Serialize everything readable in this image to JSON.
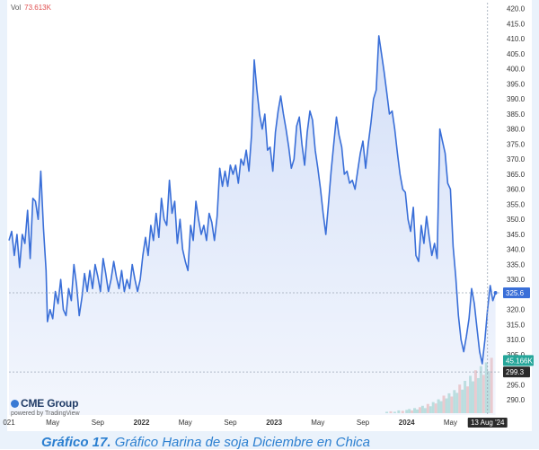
{
  "header": {
    "vol_label": "Vol",
    "vol_value": "73.613K"
  },
  "branding": {
    "logo": "CME Group",
    "powered_by": "powered by TradingView"
  },
  "caption": {
    "prefix": "Gráfico 17.",
    "text": " Gráfico Harina de soja Diciembre en Chica"
  },
  "colors": {
    "line": "#3a6fd8",
    "area": "#cfdcf7",
    "price_badge": "#3a6fd8",
    "vol_badge": "#26a69a",
    "low_badge": "#2b2b2b",
    "vol_up": "#a6d8cf",
    "vol_down": "#f2b8b5"
  },
  "chart_data": {
    "type": "area",
    "ylim": [
      285,
      422
    ],
    "yticks": [
      290,
      295,
      300,
      305,
      310,
      315,
      320,
      325,
      330,
      335,
      340,
      345,
      350,
      355,
      360,
      365,
      370,
      375,
      380,
      385,
      390,
      395,
      400,
      405,
      410,
      415,
      420
    ],
    "xticks": [
      {
        "label": "021",
        "t": 0.0
      },
      {
        "label": "May",
        "t": 0.33
      },
      {
        "label": "Sep",
        "t": 0.67
      },
      {
        "label": "2022",
        "t": 1.0,
        "bold": true
      },
      {
        "label": "May",
        "t": 1.33
      },
      {
        "label": "Sep",
        "t": 1.67
      },
      {
        "label": "2023",
        "t": 2.0,
        "bold": true
      },
      {
        "label": "May",
        "t": 2.33
      },
      {
        "label": "Sep",
        "t": 2.67
      },
      {
        "label": "2024",
        "t": 3.0,
        "bold": true
      },
      {
        "label": "May",
        "t": 3.33
      }
    ],
    "last_price": 325.6,
    "last_price_label": "325.6",
    "low_price_label": "299.3",
    "low_price": 299.3,
    "volume_label": "45.166K",
    "volume_ylim_value": 304,
    "date_marker": "13 Aug '24",
    "date_marker_t": 3.61,
    "price_series": [
      [
        0.0,
        343
      ],
      [
        0.02,
        346
      ],
      [
        0.04,
        338
      ],
      [
        0.06,
        345
      ],
      [
        0.08,
        334
      ],
      [
        0.1,
        345
      ],
      [
        0.12,
        342
      ],
      [
        0.14,
        353
      ],
      [
        0.16,
        337
      ],
      [
        0.18,
        357
      ],
      [
        0.2,
        356
      ],
      [
        0.22,
        350
      ],
      [
        0.24,
        366
      ],
      [
        0.26,
        347
      ],
      [
        0.28,
        333
      ],
      [
        0.29,
        316
      ],
      [
        0.31,
        320
      ],
      [
        0.33,
        317
      ],
      [
        0.35,
        326
      ],
      [
        0.37,
        322
      ],
      [
        0.39,
        330
      ],
      [
        0.41,
        320
      ],
      [
        0.43,
        318
      ],
      [
        0.45,
        327
      ],
      [
        0.47,
        323
      ],
      [
        0.49,
        335
      ],
      [
        0.51,
        328
      ],
      [
        0.53,
        318
      ],
      [
        0.55,
        324
      ],
      [
        0.57,
        332
      ],
      [
        0.59,
        326
      ],
      [
        0.61,
        333
      ],
      [
        0.63,
        327
      ],
      [
        0.65,
        335
      ],
      [
        0.67,
        331
      ],
      [
        0.69,
        326
      ],
      [
        0.71,
        337
      ],
      [
        0.73,
        332
      ],
      [
        0.75,
        326
      ],
      [
        0.77,
        330
      ],
      [
        0.79,
        336
      ],
      [
        0.81,
        331
      ],
      [
        0.83,
        327
      ],
      [
        0.85,
        333
      ],
      [
        0.87,
        326
      ],
      [
        0.89,
        330
      ],
      [
        0.91,
        327
      ],
      [
        0.93,
        335
      ],
      [
        0.95,
        330
      ],
      [
        0.97,
        326
      ],
      [
        0.99,
        330
      ],
      [
        1.01,
        338
      ],
      [
        1.03,
        344
      ],
      [
        1.05,
        338
      ],
      [
        1.07,
        348
      ],
      [
        1.09,
        343
      ],
      [
        1.11,
        352
      ],
      [
        1.13,
        344
      ],
      [
        1.15,
        357
      ],
      [
        1.17,
        350
      ],
      [
        1.19,
        348
      ],
      [
        1.21,
        363
      ],
      [
        1.23,
        352
      ],
      [
        1.25,
        356
      ],
      [
        1.27,
        342
      ],
      [
        1.29,
        350
      ],
      [
        1.31,
        340
      ],
      [
        1.33,
        336
      ],
      [
        1.35,
        333
      ],
      [
        1.37,
        348
      ],
      [
        1.39,
        343
      ],
      [
        1.41,
        356
      ],
      [
        1.43,
        350
      ],
      [
        1.45,
        345
      ],
      [
        1.47,
        348
      ],
      [
        1.49,
        343
      ],
      [
        1.51,
        352
      ],
      [
        1.53,
        349
      ],
      [
        1.55,
        343
      ],
      [
        1.57,
        351
      ],
      [
        1.59,
        367
      ],
      [
        1.61,
        361
      ],
      [
        1.63,
        366
      ],
      [
        1.65,
        361
      ],
      [
        1.67,
        368
      ],
      [
        1.69,
        365
      ],
      [
        1.71,
        368
      ],
      [
        1.73,
        362
      ],
      [
        1.75,
        370
      ],
      [
        1.77,
        368
      ],
      [
        1.79,
        373
      ],
      [
        1.81,
        366
      ],
      [
        1.83,
        378
      ],
      [
        1.85,
        403
      ],
      [
        1.87,
        393
      ],
      [
        1.89,
        385
      ],
      [
        1.91,
        380
      ],
      [
        1.93,
        385
      ],
      [
        1.95,
        373
      ],
      [
        1.97,
        374
      ],
      [
        1.99,
        366
      ],
      [
        2.01,
        379
      ],
      [
        2.03,
        386
      ],
      [
        2.05,
        391
      ],
      [
        2.07,
        385
      ],
      [
        2.09,
        380
      ],
      [
        2.11,
        374
      ],
      [
        2.13,
        367
      ],
      [
        2.15,
        370
      ],
      [
        2.17,
        381
      ],
      [
        2.19,
        384
      ],
      [
        2.21,
        375
      ],
      [
        2.23,
        368
      ],
      [
        2.25,
        379
      ],
      [
        2.27,
        386
      ],
      [
        2.29,
        383
      ],
      [
        2.31,
        373
      ],
      [
        2.33,
        367
      ],
      [
        2.35,
        360
      ],
      [
        2.37,
        352
      ],
      [
        2.39,
        345
      ],
      [
        2.41,
        355
      ],
      [
        2.43,
        366
      ],
      [
        2.45,
        375
      ],
      [
        2.47,
        384
      ],
      [
        2.49,
        378
      ],
      [
        2.51,
        374
      ],
      [
        2.53,
        365
      ],
      [
        2.55,
        366
      ],
      [
        2.57,
        362
      ],
      [
        2.59,
        363
      ],
      [
        2.61,
        360
      ],
      [
        2.63,
        366
      ],
      [
        2.65,
        372
      ],
      [
        2.67,
        376
      ],
      [
        2.69,
        367
      ],
      [
        2.71,
        375
      ],
      [
        2.73,
        382
      ],
      [
        2.75,
        390
      ],
      [
        2.77,
        393
      ],
      [
        2.79,
        411
      ],
      [
        2.81,
        405
      ],
      [
        2.83,
        399
      ],
      [
        2.85,
        392
      ],
      [
        2.87,
        385
      ],
      [
        2.89,
        386
      ],
      [
        2.91,
        380
      ],
      [
        2.93,
        372
      ],
      [
        2.95,
        365
      ],
      [
        2.97,
        360
      ],
      [
        2.99,
        359
      ],
      [
        3.01,
        350
      ],
      [
        3.03,
        346
      ],
      [
        3.05,
        354
      ],
      [
        3.07,
        338
      ],
      [
        3.09,
        336
      ],
      [
        3.11,
        348
      ],
      [
        3.13,
        342
      ],
      [
        3.15,
        351
      ],
      [
        3.17,
        344
      ],
      [
        3.19,
        338
      ],
      [
        3.21,
        342
      ],
      [
        3.23,
        337
      ],
      [
        3.25,
        380
      ],
      [
        3.27,
        376
      ],
      [
        3.29,
        372
      ],
      [
        3.31,
        362
      ],
      [
        3.33,
        360
      ],
      [
        3.35,
        341
      ],
      [
        3.37,
        331
      ],
      [
        3.39,
        318
      ],
      [
        3.41,
        310
      ],
      [
        3.43,
        306
      ],
      [
        3.45,
        311
      ],
      [
        3.47,
        317
      ],
      [
        3.49,
        327
      ],
      [
        3.51,
        322
      ],
      [
        3.53,
        314
      ],
      [
        3.55,
        306
      ],
      [
        3.57,
        302
      ],
      [
        3.59,
        310
      ],
      [
        3.61,
        320
      ],
      [
        3.63,
        328
      ],
      [
        3.65,
        323
      ],
      [
        3.67,
        325.6
      ]
    ],
    "volume_series": [
      [
        2.85,
        0.3
      ],
      [
        2.88,
        0.4
      ],
      [
        2.91,
        0.3
      ],
      [
        2.94,
        0.6
      ],
      [
        2.97,
        0.5
      ],
      [
        3.0,
        0.7
      ],
      [
        3.02,
        0.9
      ],
      [
        3.04,
        0.6
      ],
      [
        3.06,
        1.1
      ],
      [
        3.08,
        0.8
      ],
      [
        3.1,
        1.3
      ],
      [
        3.12,
        1.6
      ],
      [
        3.14,
        1.1
      ],
      [
        3.16,
        2.0
      ],
      [
        3.18,
        1.5
      ],
      [
        3.2,
        2.4
      ],
      [
        3.22,
        2.1
      ],
      [
        3.24,
        3.0
      ],
      [
        3.26,
        2.6
      ],
      [
        3.28,
        3.8
      ],
      [
        3.3,
        3.2
      ],
      [
        3.32,
        4.3
      ],
      [
        3.34,
        3.6
      ],
      [
        3.36,
        5.0
      ],
      [
        3.38,
        4.4
      ],
      [
        3.4,
        6.2
      ],
      [
        3.42,
        5.1
      ],
      [
        3.44,
        7.0
      ],
      [
        3.46,
        5.8
      ],
      [
        3.48,
        8.1
      ],
      [
        3.5,
        6.9
      ],
      [
        3.52,
        9.3
      ],
      [
        3.54,
        7.6
      ],
      [
        3.56,
        10.2
      ],
      [
        3.58,
        8.3
      ],
      [
        3.6,
        11.0
      ],
      [
        3.62,
        9.1
      ],
      [
        3.64,
        12.0
      ]
    ]
  }
}
